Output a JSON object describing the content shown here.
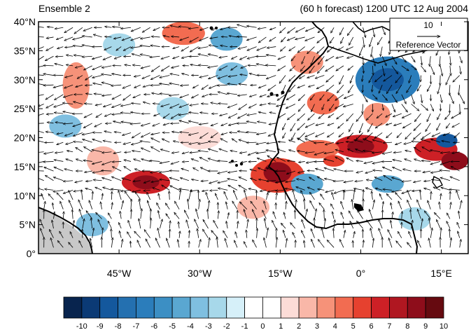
{
  "header": {
    "left_title": "Ensemble 2",
    "right_title": "(60 h forecast) 1200 UTC 12 Aug 2004"
  },
  "map": {
    "lat_ticks": [
      "40°N",
      "35°N",
      "30°N",
      "25°N",
      "20°N",
      "15°N",
      "10°N",
      "5°N",
      "0°"
    ],
    "lon_ticks": [
      "45°W",
      "30°W",
      "15°W",
      "0°",
      "15°E"
    ],
    "extent": {
      "lon_min": -60,
      "lon_max": 20,
      "lat_min": 0,
      "lat_max": 40
    },
    "land_color": "#c8c8c8",
    "coast_color": "#000000"
  },
  "reference_vector": {
    "magnitude_label": "10",
    "caption": "Reference Vector"
  },
  "colorbar": {
    "labels": [
      "-10",
      "-9",
      "-8",
      "-7",
      "-6",
      "-5",
      "-4",
      "-3",
      "-2",
      "-1",
      "0",
      "1",
      "2",
      "3",
      "4",
      "5",
      "6",
      "7",
      "8",
      "9",
      "10"
    ],
    "colors": [
      "#08244e",
      "#0b3a75",
      "#14589d",
      "#2470b0",
      "#2b7dbb",
      "#3c8fc4",
      "#5aa7d1",
      "#7fbfe0",
      "#a7d8ea",
      "#d6f0f9",
      "#ffffff",
      "#ffffff",
      "#fcdcd7",
      "#f9b7a8",
      "#f69279",
      "#f26c51",
      "#e6412f",
      "#cd2026",
      "#b01721",
      "#8e0d1b",
      "#660a10"
    ]
  }
}
